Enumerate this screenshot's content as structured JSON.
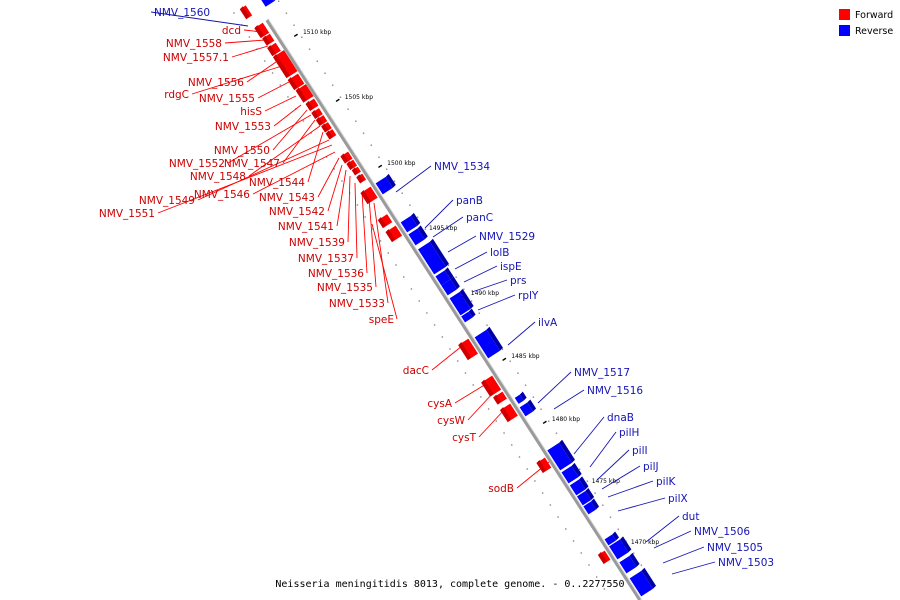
{
  "caption": "Neisseria meningitidis 8013, complete genome. - 0..2277550",
  "legend": [
    {
      "label": "Forward",
      "color": "#ff0000"
    },
    {
      "label": "Reverse",
      "color": "#0000ff"
    }
  ],
  "colors": {
    "forward": "#ff0000",
    "reverse": "#0000ff",
    "forward_label": "#cc0000",
    "reverse_label": "#1414b4"
  },
  "scale_ticks": [
    "1510 kbp",
    "1505 kbp",
    "1500 kbp",
    "1495 kbp",
    "1490 kbp",
    "1485 kbp",
    "1480 kbp",
    "1475 kbp",
    "1470 kbp"
  ],
  "forward_genes": [
    "dcd",
    "NMV_1558",
    "NMV_1557.1",
    "NMV_1556",
    "rdgC",
    "NMV_1555",
    "hisS",
    "NMV_1553",
    "NMV_1550",
    "NMV_1552",
    "NMV_1547",
    "NMV_1548",
    "NMV_1544",
    "NMV_1546",
    "NMV_1549",
    "NMV_1543",
    "NMV_1551",
    "NMV_1542",
    "NMV_1541",
    "NMV_1539",
    "NMV_1537",
    "NMV_1536",
    "NMV_1535",
    "NMV_1533",
    "speE",
    "dacC",
    "cysA",
    "cysW",
    "cysT",
    "sodB"
  ],
  "reverse_genes": [
    "NMV_1560",
    "NMV_1534",
    "panB",
    "panC",
    "NMV_1529",
    "lolB",
    "ispE",
    "prs",
    "rplY",
    "ilvA",
    "NMV_1517",
    "NMV_1516",
    "dnaB",
    "pilH",
    "pilI",
    "pilJ",
    "pilK",
    "pilX",
    "dut",
    "NMV_1506",
    "NMV_1505",
    "NMV_1503"
  ]
}
